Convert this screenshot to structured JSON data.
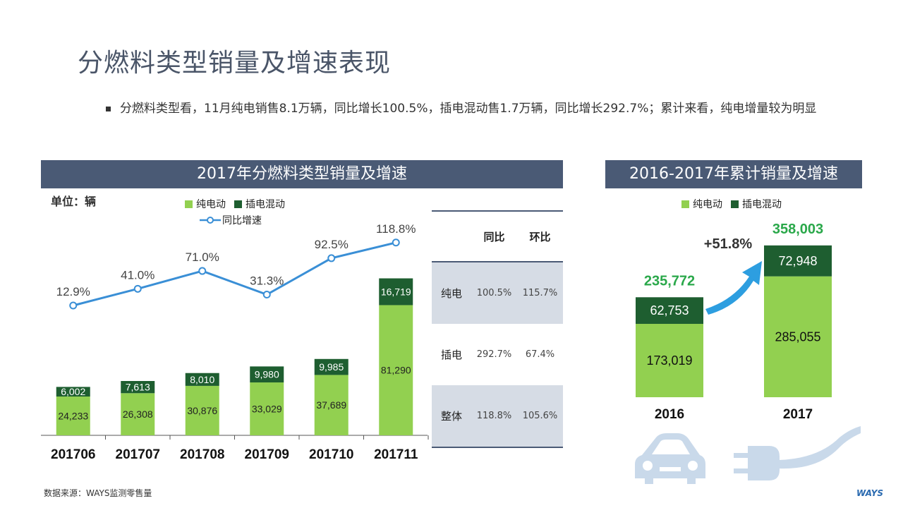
{
  "page": {
    "title": "分燃料类型销量及增速表现",
    "bullet": "分燃料类型看，11月纯电销售8.1万辆，同比增长100.5%，插电混动售1.7万辆，同比增长292.7%；累计来看，纯电增量较为明显",
    "footer": "数据来源：WAYS监测零售量",
    "logo": "WAYS"
  },
  "left_panel": {
    "header": "2017年分燃料类型销量及增速",
    "unit": "单位：辆",
    "legend_bev": "纯电动",
    "legend_phev": "插电混动",
    "legend_line": "同比增速"
  },
  "right_panel": {
    "header": "2016-2017年累计销量及增速",
    "legend_bev": "纯电动",
    "legend_phev": "插电混动",
    "growth": "+51.8%"
  },
  "table": {
    "headers": [
      "",
      "同比",
      "环比"
    ],
    "rows": [
      {
        "label": "纯电",
        "yoy": "100.5%",
        "mom": "115.7%"
      },
      {
        "label": "插电",
        "yoy": "292.7%",
        "mom": "67.4%"
      },
      {
        "label": "整体",
        "yoy": "118.8%",
        "mom": "105.6%"
      }
    ]
  },
  "colors": {
    "bev": "#92d050",
    "phev": "#1e5e30",
    "line": "#3a8fd6",
    "header": "#4a5a75",
    "total_label": "#2aa84a"
  },
  "chart_data": [
    {
      "type": "bar",
      "stacked": true,
      "categories": [
        "201706",
        "201707",
        "201708",
        "201709",
        "201710",
        "201711"
      ],
      "series": [
        {
          "name": "纯电动",
          "values": [
            24233,
            26308,
            30876,
            33029,
            37689,
            81290
          ]
        },
        {
          "name": "插电混动",
          "values": [
            6002,
            7613,
            8010,
            9980,
            9985,
            16719
          ]
        }
      ],
      "line_series": {
        "name": "同比增速",
        "values": [
          12.9,
          41.0,
          71.0,
          31.3,
          92.5,
          118.8
        ],
        "labels": [
          "12.9%",
          "41.0%",
          "71.0%",
          "31.3%",
          "92.5%",
          "118.8%"
        ]
      },
      "value_labels_bev": [
        "24,233",
        "26,308",
        "30,876",
        "33,029",
        "37,689",
        "81,290"
      ],
      "value_labels_phev": [
        "6,002",
        "7,613",
        "8,010",
        "9,980",
        "9,985",
        "16,719"
      ],
      "ylabel": "单位：辆"
    },
    {
      "type": "bar",
      "stacked": true,
      "categories": [
        "2016",
        "2017"
      ],
      "series": [
        {
          "name": "纯电动",
          "values": [
            173019,
            285055
          ]
        },
        {
          "name": "插电混动",
          "values": [
            62753,
            72948
          ]
        }
      ],
      "totals": [
        235772,
        358003
      ],
      "value_labels_bev": [
        "173,019",
        "285,055"
      ],
      "value_labels_phev": [
        "62,753",
        "72,948"
      ],
      "total_labels": [
        "235,772",
        "358,003"
      ]
    }
  ]
}
